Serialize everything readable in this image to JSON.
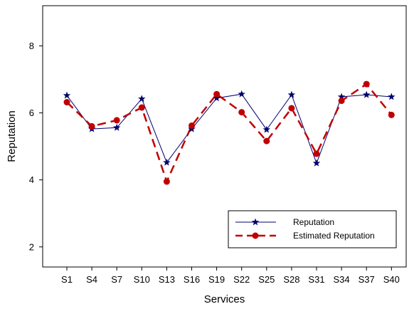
{
  "chart_data": {
    "type": "line",
    "title": "",
    "xlabel": "Services",
    "ylabel": "Reputation",
    "categories": [
      "S1",
      "S4",
      "S7",
      "S10",
      "S13",
      "S16",
      "S19",
      "S22",
      "S25",
      "S28",
      "S31",
      "S34",
      "S37",
      "S40"
    ],
    "yticks": [
      2,
      4,
      6,
      8
    ],
    "ylim": [
      1.4,
      9.2
    ],
    "grid": false,
    "legend_position": "bottom-right",
    "series": [
      {
        "name": "Reputation",
        "color": "#00006e",
        "line_style": "solid",
        "marker": "star",
        "values": [
          6.52,
          5.52,
          5.56,
          6.42,
          4.52,
          5.52,
          6.44,
          6.56,
          5.5,
          6.54,
          4.5,
          6.48,
          6.54,
          6.48
        ]
      },
      {
        "name": "Estimated Reputation",
        "color": "#c00000",
        "line_style": "dashed",
        "marker": "circle",
        "values": [
          6.32,
          5.6,
          5.78,
          6.16,
          3.95,
          5.62,
          6.56,
          6.02,
          5.16,
          6.14,
          4.78,
          6.36,
          6.86,
          5.94
        ]
      }
    ]
  }
}
